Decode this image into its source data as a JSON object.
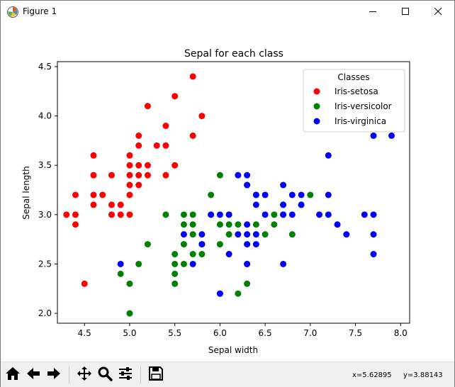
{
  "window": {
    "title": "Figure 1",
    "icons": {
      "app": "matplotlib-figure-icon",
      "minimize": "minimize-icon",
      "maximize": "maximize-icon",
      "close": "close-icon"
    }
  },
  "chart_data": {
    "type": "scatter",
    "title": "Sepal for each class",
    "xlabel": "Sepal width",
    "ylabel": "Sepal length",
    "xlim": [
      4.2,
      8.1
    ],
    "ylim": [
      1.9,
      4.55
    ],
    "xticks": [
      "4.5",
      "5.0",
      "5.5",
      "6.0",
      "6.5",
      "7.0",
      "7.5",
      "8.0"
    ],
    "yticks": [
      "2.0",
      "2.5",
      "3.0",
      "3.5",
      "4.0",
      "4.5"
    ],
    "grid": false,
    "legend": {
      "title": "Classes",
      "placement": "upper right"
    },
    "series": [
      {
        "name": "Iris-setosa",
        "color": "#ff0000",
        "points": [
          [
            4.3,
            3.0
          ],
          [
            4.4,
            2.9
          ],
          [
            4.4,
            3.0
          ],
          [
            4.4,
            3.2
          ],
          [
            4.5,
            2.3
          ],
          [
            4.6,
            3.1
          ],
          [
            4.6,
            3.2
          ],
          [
            4.6,
            3.4
          ],
          [
            4.6,
            3.6
          ],
          [
            4.7,
            3.2
          ],
          [
            4.8,
            3.0
          ],
          [
            4.8,
            3.1
          ],
          [
            4.8,
            3.4
          ],
          [
            4.9,
            3.0
          ],
          [
            4.9,
            3.1
          ],
          [
            5.0,
            3.0
          ],
          [
            5.0,
            3.2
          ],
          [
            5.0,
            3.3
          ],
          [
            5.0,
            3.4
          ],
          [
            5.0,
            3.5
          ],
          [
            5.0,
            3.6
          ],
          [
            5.1,
            3.3
          ],
          [
            5.1,
            3.4
          ],
          [
            5.1,
            3.5
          ],
          [
            5.1,
            3.7
          ],
          [
            5.1,
            3.8
          ],
          [
            5.2,
            3.4
          ],
          [
            5.2,
            3.5
          ],
          [
            5.2,
            4.1
          ],
          [
            5.3,
            3.7
          ],
          [
            5.4,
            3.4
          ],
          [
            5.4,
            3.7
          ],
          [
            5.4,
            3.9
          ],
          [
            5.5,
            3.5
          ],
          [
            5.5,
            4.2
          ],
          [
            5.7,
            3.8
          ],
          [
            5.7,
            4.4
          ],
          [
            5.8,
            4.0
          ]
        ]
      },
      {
        "name": "Iris-versicolor",
        "color": "#008000",
        "points": [
          [
            4.9,
            2.4
          ],
          [
            5.0,
            2.0
          ],
          [
            5.0,
            2.3
          ],
          [
            5.1,
            2.5
          ],
          [
            5.2,
            2.7
          ],
          [
            5.4,
            3.0
          ],
          [
            5.5,
            2.3
          ],
          [
            5.5,
            2.4
          ],
          [
            5.5,
            2.5
          ],
          [
            5.5,
            2.6
          ],
          [
            5.6,
            2.5
          ],
          [
            5.6,
            2.7
          ],
          [
            5.6,
            2.9
          ],
          [
            5.6,
            3.0
          ],
          [
            5.7,
            2.6
          ],
          [
            5.7,
            2.8
          ],
          [
            5.7,
            2.9
          ],
          [
            5.7,
            3.0
          ],
          [
            5.8,
            2.6
          ],
          [
            5.8,
            2.7
          ],
          [
            5.9,
            3.0
          ],
          [
            5.9,
            3.2
          ],
          [
            6.0,
            2.2
          ],
          [
            6.0,
            2.7
          ],
          [
            6.0,
            2.9
          ],
          [
            6.0,
            3.4
          ],
          [
            6.1,
            2.8
          ],
          [
            6.1,
            2.9
          ],
          [
            6.1,
            3.0
          ],
          [
            6.2,
            2.2
          ],
          [
            6.2,
            2.9
          ],
          [
            6.3,
            2.3
          ],
          [
            6.3,
            2.5
          ],
          [
            6.3,
            3.3
          ],
          [
            6.4,
            2.9
          ],
          [
            6.4,
            3.2
          ],
          [
            6.5,
            2.8
          ],
          [
            6.6,
            2.9
          ],
          [
            6.6,
            3.0
          ],
          [
            6.7,
            3.0
          ],
          [
            6.7,
            3.1
          ],
          [
            6.8,
            2.8
          ],
          [
            6.9,
            3.1
          ],
          [
            7.0,
            3.2
          ]
        ]
      },
      {
        "name": "Iris-virginica",
        "color": "#0000ff",
        "points": [
          [
            4.9,
            2.5
          ],
          [
            5.6,
            2.8
          ],
          [
            5.7,
            2.5
          ],
          [
            5.8,
            2.7
          ],
          [
            5.8,
            2.8
          ],
          [
            5.9,
            3.0
          ],
          [
            6.0,
            2.2
          ],
          [
            6.0,
            3.0
          ],
          [
            6.1,
            2.6
          ],
          [
            6.1,
            3.0
          ],
          [
            6.2,
            2.8
          ],
          [
            6.2,
            3.4
          ],
          [
            6.3,
            2.5
          ],
          [
            6.3,
            2.7
          ],
          [
            6.3,
            2.8
          ],
          [
            6.3,
            2.9
          ],
          [
            6.3,
            3.3
          ],
          [
            6.3,
            3.4
          ],
          [
            6.4,
            2.7
          ],
          [
            6.4,
            2.8
          ],
          [
            6.4,
            3.1
          ],
          [
            6.4,
            3.2
          ],
          [
            6.5,
            3.0
          ],
          [
            6.5,
            3.2
          ],
          [
            6.7,
            2.5
          ],
          [
            6.7,
            3.0
          ],
          [
            6.7,
            3.1
          ],
          [
            6.7,
            3.3
          ],
          [
            6.8,
            3.0
          ],
          [
            6.8,
            3.2
          ],
          [
            6.9,
            3.1
          ],
          [
            6.9,
            3.2
          ],
          [
            7.1,
            3.0
          ],
          [
            7.2,
            3.0
          ],
          [
            7.2,
            3.2
          ],
          [
            7.2,
            3.6
          ],
          [
            7.3,
            2.9
          ],
          [
            7.4,
            2.8
          ],
          [
            7.6,
            3.0
          ],
          [
            7.7,
            2.6
          ],
          [
            7.7,
            2.8
          ],
          [
            7.7,
            3.0
          ],
          [
            7.7,
            3.8
          ],
          [
            7.9,
            3.8
          ]
        ]
      }
    ]
  },
  "toolbar": {
    "buttons": [
      {
        "name": "home-button",
        "icon": "home-icon"
      },
      {
        "name": "back-button",
        "icon": "arrow-left-icon"
      },
      {
        "name": "forward-button",
        "icon": "arrow-right-icon"
      },
      {
        "name": "pan-button",
        "icon": "move-icon"
      },
      {
        "name": "zoom-button",
        "icon": "magnifier-icon"
      },
      {
        "name": "configure-subplots-button",
        "icon": "sliders-icon"
      },
      {
        "name": "save-button",
        "icon": "floppy-disk-icon"
      }
    ],
    "coords": {
      "x": "x=5.62895",
      "y": "y=3.88143"
    }
  }
}
